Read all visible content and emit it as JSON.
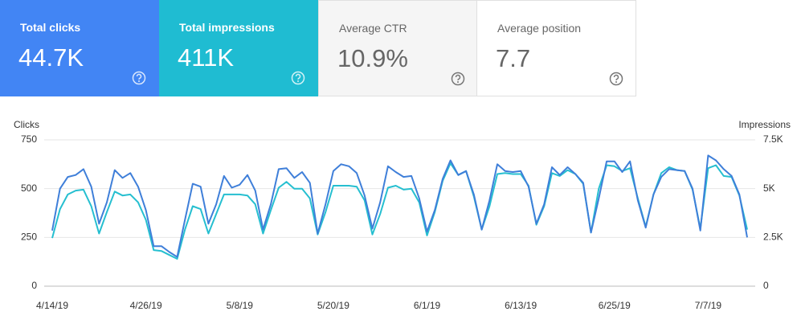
{
  "cards": [
    {
      "title": "Total clicks",
      "value": "44.7K"
    },
    {
      "title": "Total impressions",
      "value": "411K"
    },
    {
      "title": "Average CTR",
      "value": "10.9%"
    },
    {
      "title": "Average position",
      "value": "7.7"
    }
  ],
  "chart_data": {
    "type": "line",
    "y_label": "Clicks",
    "y2_label": "Impressions",
    "categories": [
      "4/14/19",
      null,
      null,
      null,
      null,
      null,
      null,
      null,
      null,
      null,
      null,
      null,
      "4/26/19",
      null,
      null,
      null,
      null,
      null,
      null,
      null,
      null,
      null,
      null,
      null,
      "5/8/19",
      null,
      null,
      null,
      null,
      null,
      null,
      null,
      null,
      null,
      null,
      null,
      "5/20/19",
      null,
      null,
      null,
      null,
      null,
      null,
      null,
      null,
      null,
      null,
      null,
      "6/1/19",
      null,
      null,
      null,
      null,
      null,
      null,
      null,
      null,
      null,
      null,
      null,
      "6/13/19",
      null,
      null,
      null,
      null,
      null,
      null,
      null,
      null,
      null,
      null,
      null,
      "6/25/19",
      null,
      null,
      null,
      null,
      null,
      null,
      null,
      null,
      null,
      null,
      null,
      "7/7/19",
      null,
      null,
      null,
      null,
      null
    ],
    "series": [
      {
        "name": "Clicks",
        "color": "#3f7fd9",
        "values": [
          285,
          500,
          560,
          570,
          600,
          510,
          320,
          430,
          595,
          555,
          580,
          510,
          390,
          205,
          205,
          175,
          150,
          340,
          525,
          510,
          320,
          420,
          565,
          505,
          520,
          570,
          490,
          290,
          420,
          600,
          605,
          555,
          585,
          530,
          270,
          420,
          590,
          625,
          615,
          580,
          465,
          295,
          430,
          615,
          585,
          560,
          565,
          450,
          280,
          390,
          550,
          645,
          570,
          590,
          470,
          290,
          440,
          625,
          590,
          585,
          590,
          510,
          320,
          420,
          610,
          570,
          610,
          575,
          530,
          275,
          450,
          640,
          640,
          585,
          640,
          440,
          300,
          470,
          560,
          600,
          595,
          590,
          500,
          285,
          670,
          645,
          600,
          565,
          470,
          250
        ]
      },
      {
        "name": "Impressions",
        "color": "#26bfd0",
        "axis": "y2",
        "values": [
          2470,
          3950,
          4700,
          4900,
          4950,
          4100,
          2700,
          3800,
          4850,
          4650,
          4700,
          4300,
          3400,
          1850,
          1800,
          1600,
          1400,
          2900,
          4100,
          3950,
          2700,
          3700,
          4700,
          4700,
          4700,
          4650,
          4200,
          2700,
          3900,
          5050,
          5350,
          5000,
          5000,
          4500,
          2650,
          3800,
          5150,
          5150,
          5150,
          5100,
          4400,
          2650,
          3700,
          5050,
          5150,
          4950,
          5000,
          4300,
          2600,
          3800,
          5400,
          6300,
          5700,
          5900,
          4600,
          2900,
          4100,
          5750,
          5800,
          5750,
          5750,
          5150,
          3150,
          4100,
          5800,
          5650,
          5950,
          5750,
          5250,
          2750,
          5000,
          6200,
          6150,
          5900,
          6050,
          4500,
          3050,
          4700,
          5800,
          6100,
          5950,
          5900,
          4950,
          2950,
          6050,
          6200,
          5650,
          5600,
          4650,
          2900
        ]
      }
    ],
    "ylim": [
      0,
      750
    ],
    "yticks": [
      0,
      250,
      500,
      750
    ],
    "y2lim": [
      0,
      7500
    ],
    "y2ticks": [
      0,
      {
        "value": 2500,
        "label": "2.5K"
      },
      {
        "value": 5000,
        "label": "5K"
      },
      {
        "value": 7500,
        "label": "7.5K"
      }
    ],
    "grid": true
  }
}
